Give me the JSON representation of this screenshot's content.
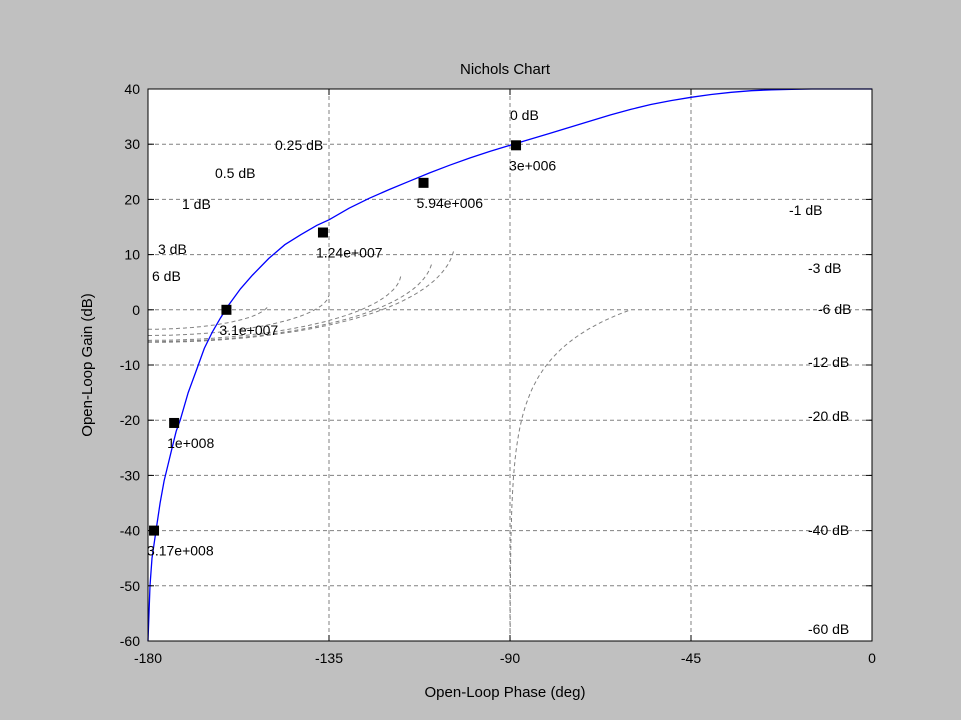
{
  "chart_data": {
    "type": "line",
    "title": "Nichols Chart",
    "xlabel": "Open-Loop Phase (deg)",
    "ylabel": "Open-Loop Gain (dB)",
    "xlim": [
      -180,
      0
    ],
    "ylim": [
      -60,
      40
    ],
    "xticks": [
      -180,
      -135,
      -90,
      -45,
      0
    ],
    "xtick_labels": [
      "-180",
      "-135",
      "-90",
      "-45",
      "0"
    ],
    "yticks": [
      40,
      30,
      20,
      10,
      0,
      -10,
      -20,
      -30,
      -40,
      -50,
      -60
    ],
    "ytick_labels": [
      "40",
      "30",
      "20",
      "10",
      "0",
      "-10",
      "-20",
      "-30",
      "-40",
      "-50",
      "-60"
    ],
    "grid": true,
    "background": "#c0c0c0",
    "plot_background": "#ffffff",
    "line_color": "#0000ff",
    "grid_color": "#808080",
    "marker_color": "#000000",
    "closed_loop_gain_lines": [
      {
        "db": 0,
        "label": "0 dB"
      },
      {
        "db": 0.25,
        "label": "0.25 dB"
      },
      {
        "db": 0.5,
        "label": "0.5 dB"
      },
      {
        "db": 1,
        "label": "1 dB"
      },
      {
        "db": 3,
        "label": "3 dB"
      },
      {
        "db": 6,
        "label": "6 dB"
      },
      {
        "db": -1,
        "label": "-1 dB"
      },
      {
        "db": -3,
        "label": "-3 dB"
      },
      {
        "db": -6,
        "label": "-6 dB"
      },
      {
        "db": -12,
        "label": "-12 dB"
      },
      {
        "db": -20,
        "label": "-20 dB"
      },
      {
        "db": -40,
        "label": "-40 dB"
      },
      {
        "db": -60,
        "label": "-60 dB"
      }
    ],
    "series": [
      {
        "x": [
          -180,
          -179.5,
          -179,
          -178,
          -177,
          -176,
          -175,
          -174,
          -173,
          -172,
          -170,
          -168,
          -166,
          -164,
          -162,
          -160,
          -157,
          -154,
          -150,
          -146,
          -142,
          -138,
          -135,
          -130,
          -125,
          -120,
          -115,
          -110,
          -105,
          -100,
          -95,
          -90,
          -85,
          -80,
          -75,
          -70,
          -65,
          -60,
          -55,
          -50,
          -45,
          -40,
          -35,
          -30,
          -25,
          -20,
          -15,
          -10,
          -5,
          0
        ],
        "y": [
          -60,
          -50,
          -45,
          -40,
          -35,
          -31,
          -28,
          -25,
          -22,
          -20,
          -15,
          -11,
          -7,
          -4,
          -1.5,
          0.8,
          3.8,
          6.3,
          9.3,
          11.8,
          13.6,
          15.3,
          16.3,
          18.4,
          20.2,
          21.8,
          23.3,
          24.8,
          26.2,
          27.5,
          28.7,
          29.8,
          30.9,
          32,
          33.1,
          34.2,
          35.3,
          36.3,
          37.2,
          37.9,
          38.5,
          39,
          39.4,
          39.7,
          39.85,
          39.95,
          40,
          40,
          40,
          40
        ]
      }
    ],
    "markers": [
      {
        "x": -88.5,
        "y": 29.8,
        "label": "3e+006"
      },
      {
        "x": -111.5,
        "y": 23,
        "label": "5.94e+006"
      },
      {
        "x": -136.5,
        "y": 14,
        "label": "1.24e+007"
      },
      {
        "x": -160.5,
        "y": 0,
        "label": "3.1e+007"
      },
      {
        "x": -173.5,
        "y": -20.5,
        "label": "1e+008"
      },
      {
        "x": -178.5,
        "y": -40,
        "label": "3.17e+008"
      }
    ]
  }
}
